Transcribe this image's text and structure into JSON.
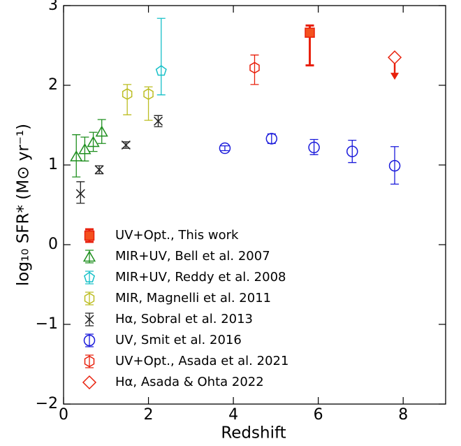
{
  "chart_data": {
    "type": "scatter",
    "xlabel": "Redshift",
    "ylabel": "log₁₀ SFR* (M⊙ yr⁻¹)",
    "xlim": [
      0,
      9
    ],
    "ylim": [
      -2,
      3
    ],
    "xticks": [
      0,
      2,
      4,
      6,
      8
    ],
    "yticks": [
      {
        "value": -2,
        "label": "−2"
      },
      {
        "value": -1,
        "label": "−1"
      },
      0,
      1,
      2,
      3
    ],
    "legend": "lower left",
    "series": [
      {
        "name": "UV+Opt., This work",
        "color": "#e8200c",
        "marker": "square",
        "filled": true,
        "thick": true,
        "x": [
          5.8
        ],
        "values": [
          2.66
        ],
        "yerr_minus": [
          0.41
        ],
        "yerr_plus": [
          0.09
        ]
      },
      {
        "name": "MIR+UV, Bell et al. 2007",
        "color": "#1f8f1f",
        "marker": "triangle",
        "x": [
          0.3,
          0.5,
          0.7,
          0.9
        ],
        "values": [
          1.11,
          1.2,
          1.29,
          1.42
        ],
        "yerr_minus": [
          0.26,
          0.15,
          0.12,
          0.15
        ],
        "yerr_plus": [
          0.27,
          0.15,
          0.12,
          0.15
        ]
      },
      {
        "name": "MIR+UV, Reddy et al. 2008",
        "color": "#17c0c8",
        "marker": "pentagon",
        "x": [
          2.3
        ],
        "values": [
          2.18
        ],
        "yerr_minus": [
          0.3
        ],
        "yerr_plus": [
          0.66
        ]
      },
      {
        "name": "MIR, Magnelli et al. 2011",
        "color": "#bcbd22",
        "marker": "hexagon",
        "x": [
          1.5,
          2.0
        ],
        "values": [
          1.89,
          1.89
        ],
        "yerr_minus": [
          0.26,
          0.33
        ],
        "yerr_plus": [
          0.12,
          0.09
        ]
      },
      {
        "name": "Hα, Sobral et al. 2013",
        "color": "#222222",
        "marker": "x",
        "x": [
          0.4,
          0.84,
          1.47,
          2.23
        ],
        "values": [
          0.64,
          0.94,
          1.25,
          1.55
        ],
        "yerr_minus": [
          0.12,
          0.05,
          0.04,
          0.07
        ],
        "yerr_plus": [
          0.15,
          0.05,
          0.04,
          0.07
        ]
      },
      {
        "name": "UV, Smit et al. 2016",
        "color": "#1a1adb",
        "marker": "circle",
        "x": [
          3.8,
          4.9,
          5.9,
          6.8,
          7.8
        ],
        "values": [
          1.21,
          1.33,
          1.22,
          1.17,
          0.99
        ],
        "yerr_minus": [
          0.03,
          0.06,
          0.09,
          0.14,
          0.23
        ],
        "yerr_plus": [
          0.03,
          0.06,
          0.1,
          0.14,
          0.24
        ]
      },
      {
        "name": "UV+Opt., Asada et al. 2021",
        "color": "#e8200c",
        "marker": "hexagon",
        "x": [
          4.5
        ],
        "values": [
          2.22
        ],
        "yerr_minus": [
          0.21
        ],
        "yerr_plus": [
          0.16
        ]
      },
      {
        "name": "Hα, Asada & Ohta 2022",
        "color": "#e8200c",
        "marker": "diamond",
        "upper_limit": true,
        "x": [
          7.8
        ],
        "values": [
          2.35
        ]
      }
    ]
  }
}
